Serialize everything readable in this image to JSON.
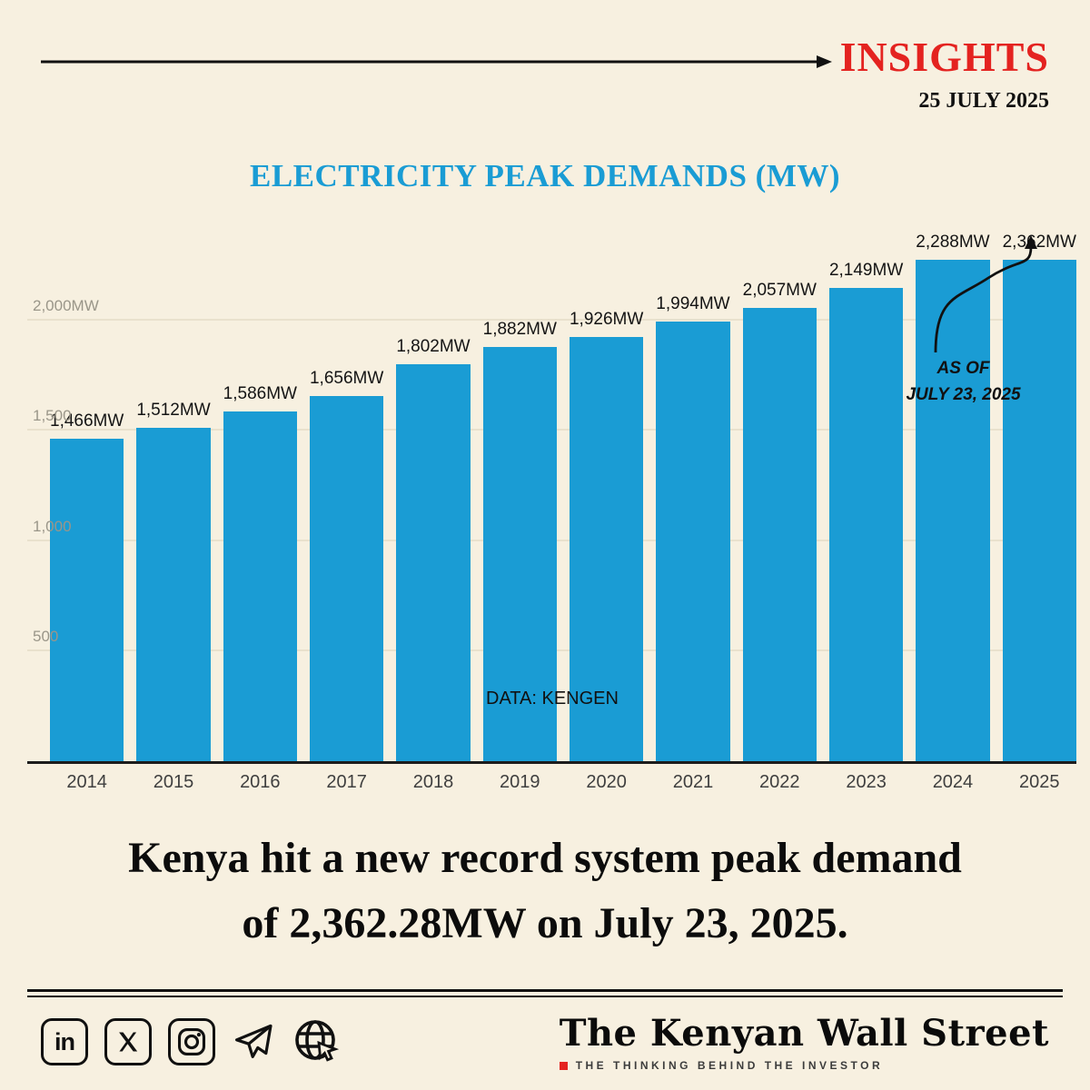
{
  "header": {
    "brand": "INSIGHTS",
    "date": "25 JULY 2025"
  },
  "chart": {
    "title": "ELECTRICITY PEAK DEMANDS (MW)",
    "source": "DATA: KENGEN",
    "annotation_line1": "AS OF",
    "annotation_line2": "JULY 23, 2025"
  },
  "chart_data": {
    "type": "bar",
    "title": "ELECTRICITY PEAK DEMANDS (MW)",
    "categories": [
      "2014",
      "2015",
      "2016",
      "2017",
      "2018",
      "2019",
      "2020",
      "2021",
      "2022",
      "2023",
      "2024",
      "2025"
    ],
    "values": [
      1466,
      1512,
      1586,
      1656,
      1802,
      1882,
      1926,
      1994,
      2057,
      2149,
      2288,
      2362
    ],
    "labels": [
      "1,466MW",
      "1,512MW",
      "1,586MW",
      "1,656MW",
      "1,802MW",
      "1,882MW",
      "1,926MW",
      "1,994MW",
      "2,057MW",
      "2,149MW",
      "2,288MW",
      "2,362MW"
    ],
    "xlabel": "",
    "ylabel": "",
    "ylim": [
      0,
      2400
    ],
    "yticks": [
      {
        "value": 500,
        "label": "500"
      },
      {
        "value": 1000,
        "label": "1,000"
      },
      {
        "value": 1500,
        "label": "1,500"
      },
      {
        "value": 2000,
        "label": "2,000MW"
      }
    ],
    "grid": true,
    "legend": "none",
    "bar_color": "#1a9cd4",
    "source_note": "DATA: KENGEN",
    "annotation": "AS OF JULY 23, 2025"
  },
  "headline": {
    "line1": "Kenya hit a new record system peak demand",
    "line2": "of 2,362.28MW on July 23, 2025."
  },
  "footer": {
    "icons": [
      "linkedin-icon",
      "x-icon",
      "instagram-icon",
      "telegram-icon",
      "globe-cursor-icon"
    ],
    "brand_name": "The Kenyan Wall Street",
    "tagline": "THE THINKING BEHIND THE INVESTOR"
  },
  "colors": {
    "background": "#f7f0e0",
    "accent_blue": "#1a9cd4",
    "accent_red": "#e42320",
    "text": "#111111"
  }
}
